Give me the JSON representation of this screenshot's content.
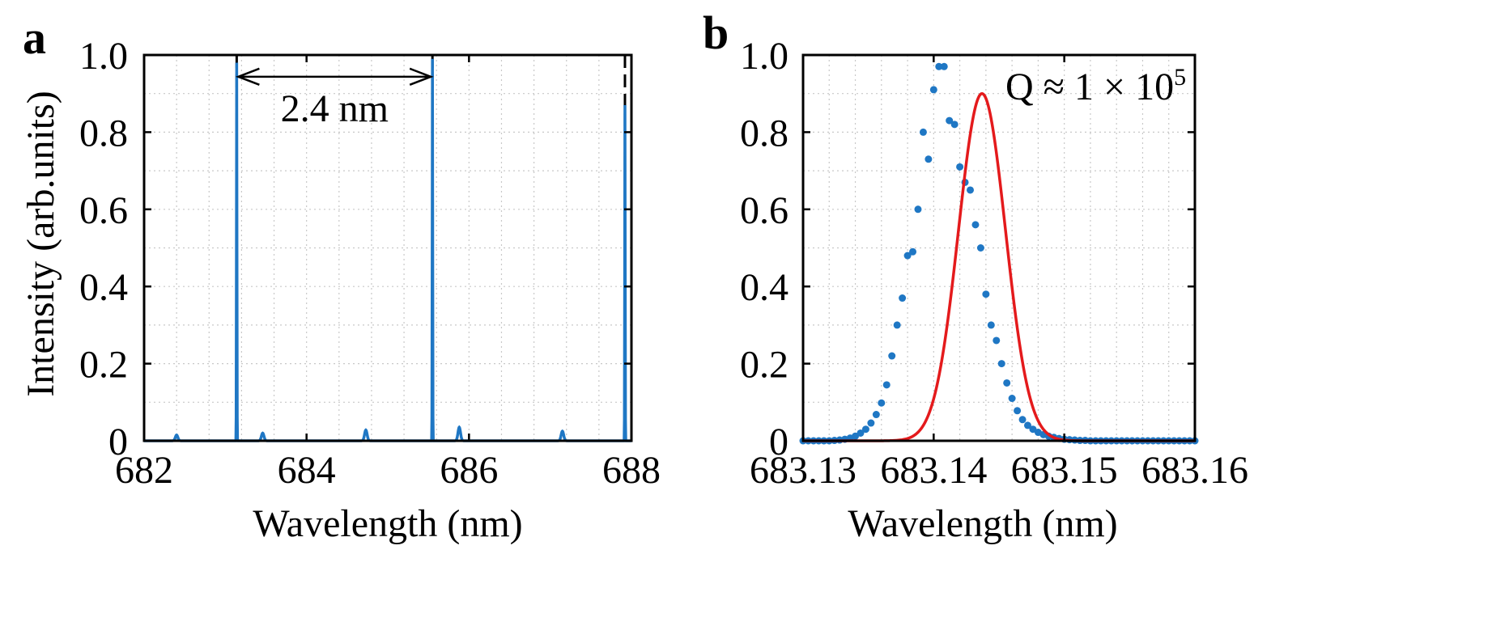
{
  "panel_a": {
    "letter": "a",
    "ylabel": "Intensity (arb.units)",
    "xlabel": "Wavelength (nm)",
    "annotation": "2.4 nm"
  },
  "panel_b": {
    "letter": "b",
    "xlabel": "Wavelength (nm)",
    "annotation_q": "Q ≈ 1 × 10",
    "annotation_q_exp": "5"
  },
  "colors": {
    "data": "#1f77c4",
    "fit": "#e41a1c",
    "marker": "#000000",
    "grid": "#c8c8c8"
  },
  "chart_data": [
    {
      "type": "line",
      "panel": "a",
      "xlabel": "Wavelength (nm)",
      "ylabel": "Intensity (arb.units)",
      "xlim": [
        682,
        688
      ],
      "ylim": [
        0,
        1.0
      ],
      "xticks": [
        682,
        684,
        686,
        688
      ],
      "xtick_labels": [
        "682",
        "684",
        "686",
        "688"
      ],
      "yticks": [
        0,
        0.2,
        0.4,
        0.6,
        0.8,
        1.0
      ],
      "ytick_labels": [
        "0",
        "0.2",
        "0.4",
        "0.6",
        "0.8",
        "1.0"
      ],
      "grid": true,
      "peaks": [
        {
          "x": 682.4,
          "y": 0.015
        },
        {
          "x": 683.14,
          "y": 0.98
        },
        {
          "x": 683.46,
          "y": 0.02
        },
        {
          "x": 684.73,
          "y": 0.028
        },
        {
          "x": 685.55,
          "y": 0.99
        },
        {
          "x": 685.88,
          "y": 0.035
        },
        {
          "x": 687.15,
          "y": 0.025
        },
        {
          "x": 687.92,
          "y": 0.87
        }
      ],
      "reference_lines": [
        683.14,
        685.55,
        687.92
      ],
      "spacing_arrow": {
        "from": 683.14,
        "to": 685.55,
        "y": 0.95,
        "label": "2.4 nm"
      }
    },
    {
      "type": "scatter",
      "panel": "b",
      "xlabel": "Wavelength (nm)",
      "xlim": [
        683.13,
        683.16
      ],
      "ylim": [
        0,
        1.0
      ],
      "xticks": [
        683.13,
        683.14,
        683.15,
        683.16
      ],
      "xtick_labels": [
        "683.13",
        "683.14",
        "683.15",
        "683.16"
      ],
      "yticks": [
        0,
        0.2,
        0.4,
        0.6,
        0.8,
        1.0
      ],
      "ytick_labels": [
        "0",
        "0.2",
        "0.4",
        "0.6",
        "0.8",
        "1.0"
      ],
      "grid": true,
      "measured": [
        [
          683.13,
          0.0
        ],
        [
          683.1304,
          0.0
        ],
        [
          683.1308,
          0.0
        ],
        [
          683.1312,
          0.0
        ],
        [
          683.1316,
          0.0
        ],
        [
          683.132,
          0.0
        ],
        [
          683.1324,
          0.001
        ],
        [
          683.1328,
          0.002
        ],
        [
          683.1332,
          0.004
        ],
        [
          683.1336,
          0.007
        ],
        [
          683.134,
          0.012
        ],
        [
          683.1344,
          0.02
        ],
        [
          683.1348,
          0.03
        ],
        [
          683.1352,
          0.046
        ],
        [
          683.1356,
          0.068
        ],
        [
          683.136,
          0.098
        ],
        [
          683.1364,
          0.145
        ],
        [
          683.1368,
          0.22
        ],
        [
          683.1372,
          0.3
        ],
        [
          683.1376,
          0.37
        ],
        [
          683.138,
          0.48
        ],
        [
          683.1384,
          0.49
        ],
        [
          683.1388,
          0.6
        ],
        [
          683.1392,
          0.8
        ],
        [
          683.1396,
          0.73
        ],
        [
          683.14,
          0.91
        ],
        [
          683.1404,
          0.97
        ],
        [
          683.1408,
          0.97
        ],
        [
          683.1412,
          0.83
        ],
        [
          683.1416,
          0.82
        ],
        [
          683.142,
          0.71
        ],
        [
          683.1424,
          0.67
        ],
        [
          683.1428,
          0.65
        ],
        [
          683.1432,
          0.56
        ],
        [
          683.1436,
          0.5
        ],
        [
          683.144,
          0.38
        ],
        [
          683.1444,
          0.3
        ],
        [
          683.1448,
          0.26
        ],
        [
          683.1452,
          0.2
        ],
        [
          683.1456,
          0.15
        ],
        [
          683.146,
          0.11
        ],
        [
          683.1464,
          0.078
        ],
        [
          683.1468,
          0.055
        ],
        [
          683.1472,
          0.04
        ],
        [
          683.1476,
          0.03
        ],
        [
          683.148,
          0.022
        ],
        [
          683.1484,
          0.016
        ],
        [
          683.1488,
          0.012
        ],
        [
          683.1492,
          0.009
        ],
        [
          683.1496,
          0.006
        ],
        [
          683.15,
          0.004
        ],
        [
          683.1504,
          0.003
        ],
        [
          683.1508,
          0.002
        ],
        [
          683.1512,
          0.001
        ],
        [
          683.1516,
          0.001
        ],
        [
          683.152,
          0.0
        ],
        [
          683.1524,
          0.0
        ],
        [
          683.1528,
          0.0
        ],
        [
          683.1532,
          0.0
        ],
        [
          683.1536,
          0.0
        ],
        [
          683.154,
          0.0
        ],
        [
          683.1544,
          0.0
        ],
        [
          683.1548,
          0.0
        ],
        [
          683.1552,
          0.0
        ],
        [
          683.1556,
          0.0
        ],
        [
          683.156,
          0.0
        ],
        [
          683.1564,
          0.0
        ],
        [
          683.1568,
          0.0
        ],
        [
          683.1572,
          0.0
        ],
        [
          683.1576,
          0.0
        ],
        [
          683.158,
          0.0
        ],
        [
          683.1584,
          0.0
        ],
        [
          683.1588,
          0.0
        ],
        [
          683.1592,
          0.0
        ],
        [
          683.1596,
          0.0
        ],
        [
          683.16,
          0.0
        ]
      ],
      "fit": {
        "model": "gaussian",
        "amplitude": 0.9,
        "center": 683.1437,
        "sigma": 0.0018
      }
    }
  ]
}
